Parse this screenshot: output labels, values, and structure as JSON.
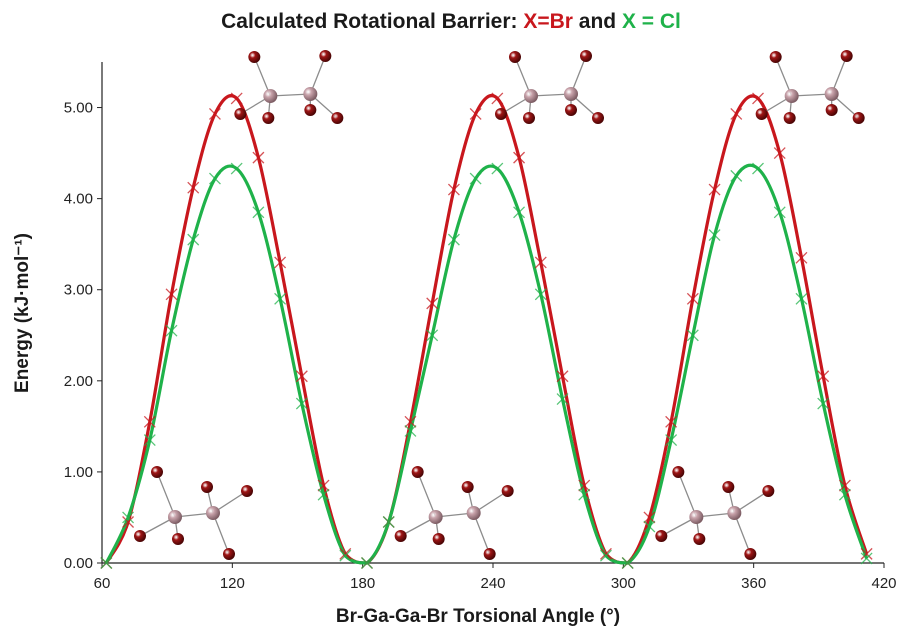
{
  "title": {
    "prefix": "Calculated Rotational Barrier: ",
    "x_br": "X=Br",
    "and": " and ",
    "x_cl": "X = Cl"
  },
  "chart_data": {
    "type": "line",
    "xlabel": "Br-Ga-Ga-Br Torsional Angle (°)",
    "ylabel": "Energy (kJ·mol⁻¹)",
    "xlim": [
      60,
      420
    ],
    "ylim": [
      0,
      5.5
    ],
    "xticks": [
      "60",
      "120",
      "180",
      "240",
      "300",
      "360",
      "420"
    ],
    "yticks": [
      "0.00",
      "1.00",
      "2.00",
      "3.00",
      "4.00",
      "5.00"
    ],
    "grid": false,
    "legend": "none (series identified by coloured title text)",
    "series": [
      {
        "name": "X=Br",
        "color": "#c8171d",
        "x": [
          62,
          72,
          82,
          92,
          102,
          112,
          122,
          132,
          142,
          152,
          162,
          172,
          182,
          192,
          202,
          212,
          222,
          232,
          242,
          252,
          262,
          272,
          282,
          292,
          302,
          312,
          322,
          332,
          342,
          352,
          362,
          372,
          382,
          392,
          402,
          412
        ],
        "values": [
          0.0,
          0.45,
          1.55,
          2.95,
          4.12,
          4.93,
          5.1,
          4.45,
          3.3,
          2.05,
          0.85,
          0.1,
          0.0,
          0.45,
          1.55,
          2.85,
          4.1,
          4.93,
          5.1,
          4.45,
          3.3,
          2.05,
          0.85,
          0.1,
          0.0,
          0.5,
          1.55,
          2.9,
          4.1,
          4.93,
          5.1,
          4.5,
          3.35,
          2.05,
          0.85,
          0.1
        ]
      },
      {
        "name": "X = Cl",
        "color": "#1fb24a",
        "x": [
          62,
          72,
          82,
          92,
          102,
          112,
          122,
          132,
          142,
          152,
          162,
          172,
          182,
          192,
          202,
          212,
          222,
          232,
          242,
          252,
          262,
          272,
          282,
          292,
          302,
          312,
          322,
          332,
          342,
          352,
          362,
          372,
          382,
          392,
          402,
          412
        ],
        "values": [
          0.0,
          0.5,
          1.35,
          2.55,
          3.55,
          4.22,
          4.33,
          3.85,
          2.9,
          1.75,
          0.75,
          0.08,
          0.0,
          0.45,
          1.45,
          2.5,
          3.55,
          4.22,
          4.33,
          3.85,
          2.95,
          1.8,
          0.75,
          0.08,
          0.0,
          0.4,
          1.35,
          2.5,
          3.6,
          4.25,
          4.33,
          3.85,
          2.9,
          1.75,
          0.75,
          0.05
        ]
      }
    ]
  },
  "molecules": {
    "top": {
      "description": "eclipsed X2Ga-GaX2 model structure at barrier maximum",
      "at_x": [
        120,
        240,
        360
      ]
    },
    "bottom": {
      "description": "staggered X2Ga-GaX2 model structure at energy minimum",
      "at_x": [
        60,
        180,
        300
      ]
    },
    "ga_color": "#c9a3ab",
    "x_color": "#a01616"
  }
}
